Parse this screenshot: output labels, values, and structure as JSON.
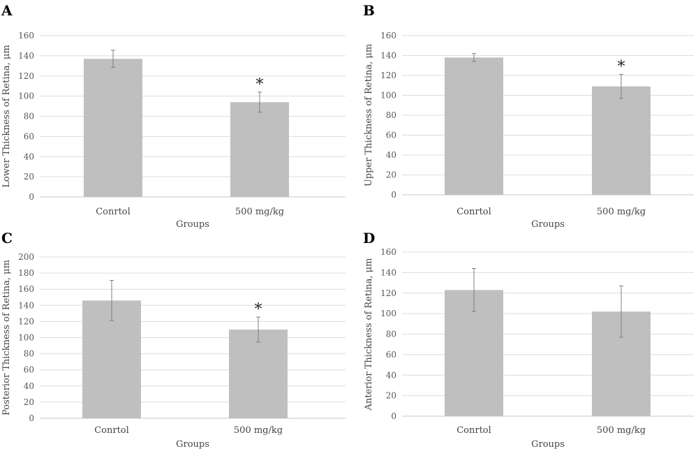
{
  "chart_data": [
    {
      "type": "bar",
      "panel_label": "A",
      "categories": [
        "Conrtol",
        "500 mg/kg"
      ],
      "values": [
        137,
        94
      ],
      "errors": [
        8.5,
        10
      ],
      "significance": [
        "",
        "*"
      ],
      "xlabel": "Groups",
      "ylabel": "Lower Thickness of Retina, μm",
      "ylim": [
        0,
        160
      ],
      "yticks": [
        0,
        20,
        40,
        60,
        80,
        100,
        120,
        140,
        160
      ],
      "bar_color": "#bfbfbf",
      "grid": true
    },
    {
      "type": "bar",
      "panel_label": "B",
      "categories": [
        "Conrtol",
        "500 mg/kg"
      ],
      "values": [
        138,
        109
      ],
      "errors": [
        4,
        12
      ],
      "significance": [
        "",
        "*"
      ],
      "xlabel": "Groups",
      "ylabel": "Upper Thickness of Retina, μm",
      "ylim": [
        0,
        160
      ],
      "yticks": [
        0,
        20,
        40,
        60,
        80,
        100,
        120,
        140,
        160
      ],
      "bar_color": "#bfbfbf",
      "grid": true
    },
    {
      "type": "bar",
      "panel_label": "C",
      "categories": [
        "Conrtol",
        "500 mg/kg"
      ],
      "values": [
        146,
        110
      ],
      "errors": [
        25,
        15.5
      ],
      "significance": [
        "",
        "*"
      ],
      "xlabel": "Groups",
      "ylabel": "Posterior Thickness of Retina, μm",
      "ylim": [
        0,
        200
      ],
      "yticks": [
        0,
        20,
        40,
        60,
        80,
        100,
        120,
        140,
        160,
        180,
        200
      ],
      "bar_color": "#bfbfbf",
      "grid": true
    },
    {
      "type": "bar",
      "panel_label": "D",
      "categories": [
        "Conrtol",
        "500 mg/kg"
      ],
      "values": [
        123,
        102
      ],
      "errors": [
        21,
        25
      ],
      "significance": [
        "",
        ""
      ],
      "xlabel": "Groups",
      "ylabel": "Anterior Thickness of Retina, μm",
      "ylim": [
        0,
        160
      ],
      "yticks": [
        0,
        20,
        40,
        60,
        80,
        100,
        120,
        140,
        160
      ],
      "bar_color": "#bfbfbf",
      "grid": true
    }
  ]
}
